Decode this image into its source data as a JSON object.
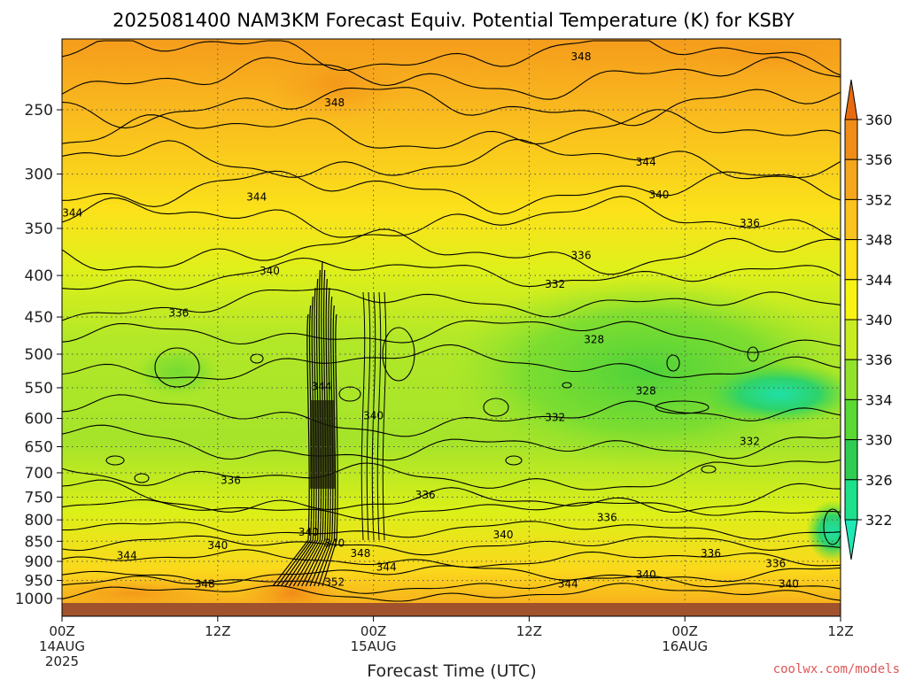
{
  "title": "2025081400 NAM3KM Forecast Equiv. Potential Temperature (K) for KSBY",
  "xlabel": "Forecast Time (UTC)",
  "credit": "coolwx.com/models",
  "credit_color": "#e05555",
  "x_ticks": [
    {
      "label": "00Z",
      "date": "14AUG",
      "year": "2025",
      "hours": 0
    },
    {
      "label": "12Z",
      "date": "",
      "year": "",
      "hours": 12
    },
    {
      "label": "00Z",
      "date": "15AUG",
      "year": "",
      "hours": 24
    },
    {
      "label": "12Z",
      "date": "",
      "year": "",
      "hours": 36
    },
    {
      "label": "00Z",
      "date": "16AUG",
      "year": "",
      "hours": 48
    },
    {
      "label": "12Z",
      "date": "",
      "year": "",
      "hours": 60
    }
  ],
  "y_ticks": [
    250,
    300,
    350,
    400,
    450,
    500,
    550,
    600,
    650,
    700,
    750,
    800,
    850,
    900,
    950,
    1000
  ],
  "colorbar": {
    "levels": [
      360,
      356,
      352,
      348,
      344,
      340,
      336,
      334,
      330,
      326,
      322
    ],
    "colors": [
      "#e86a10",
      "#f08c18",
      "#f6a61c",
      "#fbc21e",
      "#fde018",
      "#f7f413",
      "#c8ec22",
      "#92e22c",
      "#5ad834",
      "#2ecd52",
      "#1de08a",
      "#1ee8b5"
    ]
  },
  "ground_color": "#a0522d",
  "chart_data": {
    "type": "heatmap",
    "title": "2025081400 NAM3KM Forecast Equiv. Potential Temperature (K) for KSBY",
    "xlabel": "Forecast Time (UTC)",
    "ylabel": "",
    "x_range_hours": [
      0,
      60
    ],
    "y_range_hPa": [
      200,
      1025
    ],
    "y_scale": "log",
    "grid": true,
    "contour_labels": [
      {
        "value": "348",
        "x": 21,
        "y": 245
      },
      {
        "value": "348",
        "x": 40,
        "y": 215
      },
      {
        "value": "344",
        "x": 0.8,
        "y": 335
      },
      {
        "value": "344",
        "x": 15,
        "y": 320
      },
      {
        "value": "344",
        "x": 45,
        "y": 290
      },
      {
        "value": "340",
        "x": 46,
        "y": 318
      },
      {
        "value": "340",
        "x": 16,
        "y": 395
      },
      {
        "value": "336",
        "x": 40,
        "y": 378
      },
      {
        "value": "336",
        "x": 53,
        "y": 345
      },
      {
        "value": "336",
        "x": 9,
        "y": 445
      },
      {
        "value": "332",
        "x": 38,
        "y": 410
      },
      {
        "value": "328",
        "x": 41,
        "y": 480
      },
      {
        "value": "328",
        "x": 45,
        "y": 555
      },
      {
        "value": "332",
        "x": 38,
        "y": 598
      },
      {
        "value": "332",
        "x": 53,
        "y": 640
      },
      {
        "value": "344",
        "x": 20,
        "y": 548
      },
      {
        "value": "340",
        "x": 24,
        "y": 595
      },
      {
        "value": "336",
        "x": 13,
        "y": 715
      },
      {
        "value": "336",
        "x": 28,
        "y": 745
      },
      {
        "value": "336",
        "x": 42,
        "y": 795
      },
      {
        "value": "340",
        "x": 19,
        "y": 828
      },
      {
        "value": "340",
        "x": 21,
        "y": 855
      },
      {
        "value": "340",
        "x": 12,
        "y": 860
      },
      {
        "value": "344",
        "x": 5,
        "y": 885
      },
      {
        "value": "348",
        "x": 23,
        "y": 880
      },
      {
        "value": "344",
        "x": 25,
        "y": 915
      },
      {
        "value": "340",
        "x": 34,
        "y": 835
      },
      {
        "value": "336",
        "x": 50,
        "y": 880
      },
      {
        "value": "336",
        "x": 55,
        "y": 905
      },
      {
        "value": "340",
        "x": 45,
        "y": 935
      },
      {
        "value": "340",
        "x": 56,
        "y": 960
      },
      {
        "value": "344",
        "x": 39,
        "y": 960
      },
      {
        "value": "348",
        "x": 11,
        "y": 960
      },
      {
        "value": "352",
        "x": 21,
        "y": 955
      }
    ]
  }
}
